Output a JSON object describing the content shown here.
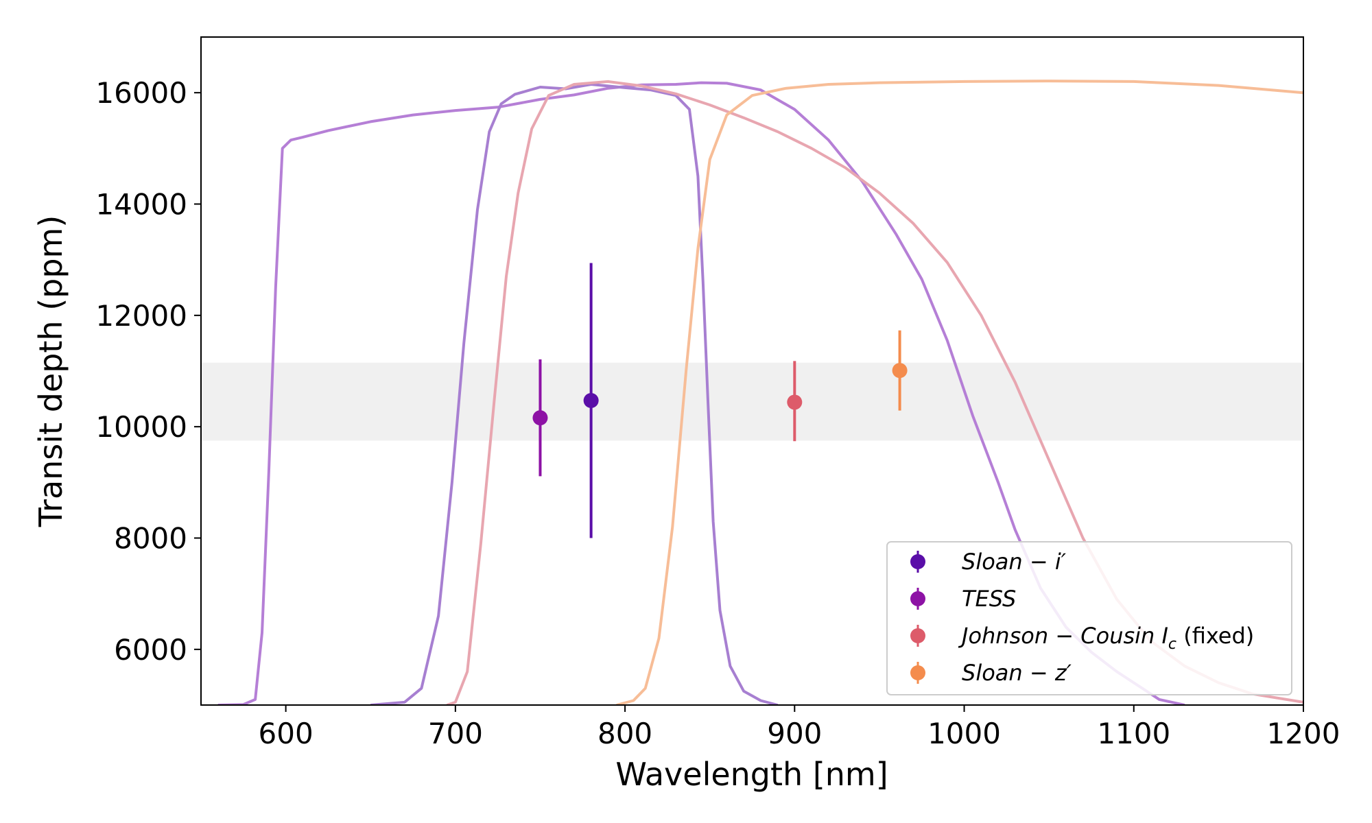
{
  "chart_data": {
    "type": "scatter",
    "title": "",
    "xlabel": "Wavelength [nm]",
    "ylabel": "Transit depth (ppm)",
    "xlim": [
      550,
      1200
    ],
    "ylim": [
      5000,
      17000
    ],
    "xticks": [
      600,
      700,
      800,
      900,
      1000,
      1100,
      1200
    ],
    "yticks": [
      6000,
      8000,
      10000,
      12000,
      14000,
      16000
    ],
    "grid": false,
    "band": {
      "y_low": 9750,
      "y_high": 11150,
      "color": "#f0f0f0"
    },
    "series": [
      {
        "name": "Sloan − i′",
        "label_main": "Sloan − i′",
        "label_sub": "",
        "label_suffix": "",
        "color": "#5a0ea8",
        "x": 780,
        "y": 10470,
        "yerr_low": 2470,
        "yerr_high": 2470
      },
      {
        "name": "TESS",
        "label_main": "TESS",
        "label_sub": "",
        "label_suffix": "",
        "color": "#8d12a5",
        "x": 750,
        "y": 10160,
        "yerr_low": 1050,
        "yerr_high": 1050
      },
      {
        "name": "Johnson − Cousin Ic (fixed)",
        "label_main": "Johnson − Cousin I",
        "label_sub": "c",
        "label_suffix": "(fixed)",
        "color": "#dd5b6a",
        "x": 900,
        "y": 10440,
        "yerr_low": 700,
        "yerr_high": 740
      },
      {
        "name": "Sloan − z′",
        "label_main": "Sloan − z′",
        "label_sub": "",
        "label_suffix": "",
        "color": "#f48c4d",
        "x": 962,
        "y": 11010,
        "yerr_low": 720,
        "yerr_high": 720
      }
    ],
    "legend_location": "lower-right",
    "filter_curves": [
      {
        "name": "TESS",
        "color": "#b57fd6",
        "points": [
          [
            560,
            5000
          ],
          [
            575,
            5010
          ],
          [
            582,
            5100
          ],
          [
            586,
            6300
          ],
          [
            590,
            9200
          ],
          [
            594,
            12500
          ],
          [
            598,
            15000
          ],
          [
            603,
            15150
          ],
          [
            610,
            15200
          ],
          [
            625,
            15320
          ],
          [
            650,
            15480
          ],
          [
            675,
            15600
          ],
          [
            700,
            15680
          ],
          [
            725,
            15740
          ],
          [
            750,
            15880
          ],
          [
            770,
            15960
          ],
          [
            790,
            16080
          ],
          [
            810,
            16140
          ],
          [
            830,
            16150
          ],
          [
            845,
            16180
          ],
          [
            860,
            16170
          ],
          [
            880,
            16050
          ],
          [
            900,
            15700
          ],
          [
            920,
            15150
          ],
          [
            940,
            14400
          ],
          [
            960,
            13450
          ],
          [
            975,
            12650
          ],
          [
            990,
            11550
          ],
          [
            1005,
            10200
          ],
          [
            1020,
            9000
          ],
          [
            1030,
            8150
          ],
          [
            1045,
            7100
          ],
          [
            1060,
            6400
          ],
          [
            1075,
            5950
          ],
          [
            1090,
            5600
          ],
          [
            1105,
            5300
          ],
          [
            1115,
            5100
          ],
          [
            1130,
            5000
          ]
        ]
      },
      {
        "name": "Sloan − i′",
        "color": "#a77fd1",
        "points": [
          [
            650,
            5000
          ],
          [
            670,
            5050
          ],
          [
            680,
            5300
          ],
          [
            690,
            6600
          ],
          [
            698,
            9000
          ],
          [
            705,
            11500
          ],
          [
            713,
            13900
          ],
          [
            720,
            15300
          ],
          [
            727,
            15800
          ],
          [
            735,
            15970
          ],
          [
            750,
            16100
          ],
          [
            765,
            16070
          ],
          [
            780,
            16150
          ],
          [
            790,
            16120
          ],
          [
            800,
            16090
          ],
          [
            815,
            16050
          ],
          [
            830,
            15950
          ],
          [
            838,
            15700
          ],
          [
            843,
            14500
          ],
          [
            846,
            12600
          ],
          [
            849,
            10400
          ],
          [
            852,
            8300
          ],
          [
            856,
            6700
          ],
          [
            862,
            5700
          ],
          [
            870,
            5250
          ],
          [
            880,
            5080
          ],
          [
            890,
            5000
          ]
        ]
      },
      {
        "name": "Johnson − Cousin Ic",
        "color": "#e8a6b0",
        "points": [
          [
            695,
            5000
          ],
          [
            700,
            5050
          ],
          [
            707,
            5600
          ],
          [
            715,
            7900
          ],
          [
            723,
            10500
          ],
          [
            730,
            12700
          ],
          [
            737,
            14200
          ],
          [
            745,
            15350
          ],
          [
            755,
            15950
          ],
          [
            770,
            16150
          ],
          [
            790,
            16200
          ],
          [
            810,
            16120
          ],
          [
            830,
            15980
          ],
          [
            850,
            15780
          ],
          [
            870,
            15550
          ],
          [
            890,
            15300
          ],
          [
            910,
            15000
          ],
          [
            930,
            14650
          ],
          [
            950,
            14200
          ],
          [
            970,
            13650
          ],
          [
            990,
            12950
          ],
          [
            1010,
            12000
          ],
          [
            1030,
            10800
          ],
          [
            1050,
            9400
          ],
          [
            1070,
            8000
          ],
          [
            1090,
            6900
          ],
          [
            1110,
            6150
          ],
          [
            1130,
            5700
          ],
          [
            1150,
            5400
          ],
          [
            1170,
            5200
          ],
          [
            1200,
            5050
          ]
        ]
      },
      {
        "name": "Sloan − z′",
        "color": "#f7bd97",
        "points": [
          [
            795,
            5000
          ],
          [
            805,
            5080
          ],
          [
            812,
            5300
          ],
          [
            820,
            6200
          ],
          [
            828,
            8200
          ],
          [
            836,
            11000
          ],
          [
            843,
            13200
          ],
          [
            850,
            14800
          ],
          [
            860,
            15600
          ],
          [
            875,
            15950
          ],
          [
            895,
            16080
          ],
          [
            920,
            16150
          ],
          [
            950,
            16180
          ],
          [
            1000,
            16200
          ],
          [
            1050,
            16210
          ],
          [
            1100,
            16200
          ],
          [
            1150,
            16130
          ],
          [
            1200,
            16000
          ]
        ]
      }
    ]
  }
}
